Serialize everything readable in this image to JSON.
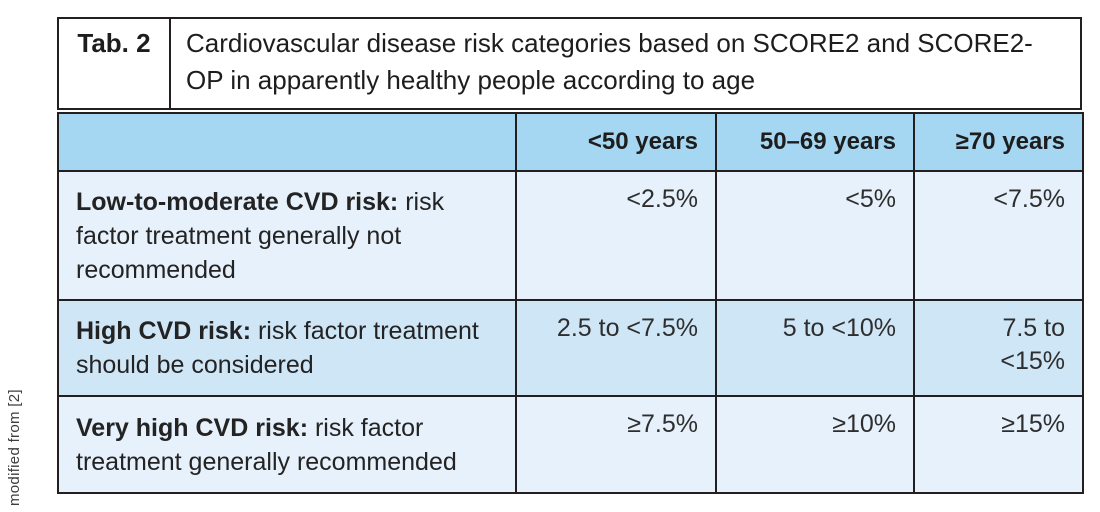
{
  "caption_side": "modified from [2]",
  "title_block": {
    "tag": "Tab. 2",
    "title": "Cardiovascular disease risk categories based on SCORE2 and SCORE2-OP in apparently healthy people according to age"
  },
  "table": {
    "column_headers": [
      "",
      "<50 years",
      "50–69 years",
      "≥70 years"
    ],
    "rows": [
      {
        "label_bold": "Low-to-moderate CVD risk:",
        "label_rest": " risk factor treatment generally not recommended",
        "values": [
          "<2.5%",
          "<5%",
          "<7.5%"
        ]
      },
      {
        "label_bold": "High CVD risk:",
        "label_rest": " risk factor treatment should be considered",
        "values": [
          "2.5 to <7.5%",
          "5 to <10%",
          "7.5 to <15%"
        ]
      },
      {
        "label_bold": "Very high CVD risk:",
        "label_rest": " risk factor treatment generally recommended",
        "values": [
          "≥7.5%",
          "≥10%",
          "≥15%"
        ]
      }
    ]
  },
  "colors": {
    "header_bg": "#a5d6f2",
    "row_light_bg": "#e6f1fb",
    "row_medium_bg": "#cfe6f7",
    "border": "#231f20",
    "text": "#232323"
  }
}
